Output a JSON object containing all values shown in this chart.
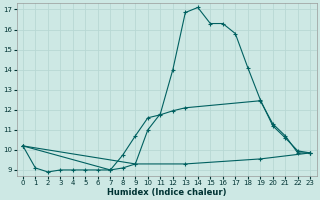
{
  "xlabel": "Humidex (Indice chaleur)",
  "bg_color": "#cde8e4",
  "grid_color": "#b8d8d4",
  "line_color": "#006060",
  "xlim": [
    -0.5,
    23.5
  ],
  "ylim": [
    8.7,
    17.3
  ],
  "xticks": [
    0,
    1,
    2,
    3,
    4,
    5,
    6,
    7,
    8,
    9,
    10,
    11,
    12,
    13,
    14,
    15,
    16,
    17,
    18,
    19,
    20,
    21,
    22,
    23
  ],
  "yticks": [
    9,
    10,
    11,
    12,
    13,
    14,
    15,
    16,
    17
  ],
  "curve1_x": [
    0,
    1,
    2,
    3,
    4,
    5,
    6,
    7,
    8,
    9,
    10,
    11,
    12,
    13,
    14,
    15,
    16,
    17,
    18,
    19,
    20,
    21,
    22,
    23
  ],
  "curve1_y": [
    10.2,
    9.1,
    8.9,
    9.0,
    9.0,
    9.0,
    9.0,
    9.0,
    9.1,
    9.3,
    11.0,
    11.8,
    14.0,
    16.85,
    17.1,
    16.3,
    16.3,
    15.8,
    14.1,
    12.5,
    11.2,
    10.6,
    9.95,
    9.85
  ],
  "curve2_x": [
    0,
    7,
    8,
    9,
    10,
    11,
    12,
    13,
    19,
    20,
    21,
    22,
    23
  ],
  "curve2_y": [
    10.2,
    9.0,
    9.75,
    10.7,
    11.6,
    11.75,
    11.95,
    12.1,
    12.45,
    11.3,
    10.7,
    9.85,
    9.85
  ],
  "curve3_x": [
    0,
    9,
    13,
    19,
    23
  ],
  "curve3_y": [
    10.2,
    9.3,
    9.3,
    9.55,
    9.85
  ]
}
